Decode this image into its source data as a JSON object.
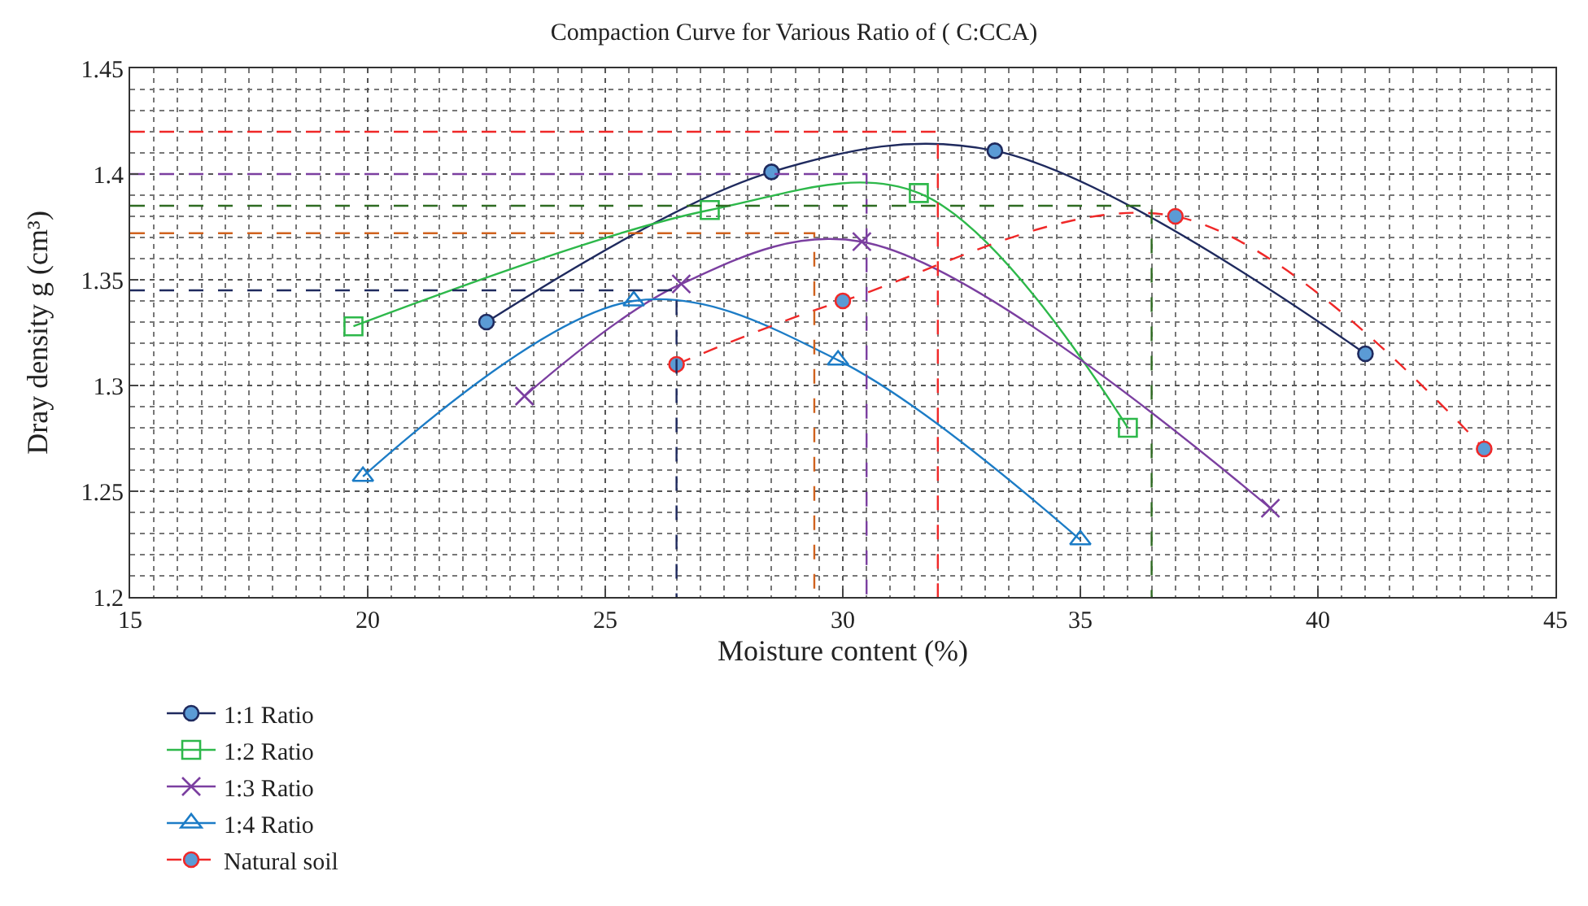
{
  "chart_data": {
    "type": "line",
    "title": "Compaction Curve for Various Ratio of ( C:CCA)",
    "xlabel": "Moisture content (%)",
    "ylabel": "Dray density g (cm³)",
    "xlim": [
      15,
      45
    ],
    "xticks": [
      15,
      20,
      25,
      30,
      35,
      40,
      45
    ],
    "ylim": [
      1.2,
      1.45
    ],
    "yticks": [
      1.2,
      1.25,
      1.3,
      1.35,
      1.4,
      1.45
    ],
    "grid": true,
    "legend": "bottom",
    "series": [
      {
        "name": "1:1 Ratio",
        "color": "#1f2a5e",
        "marker": "circle",
        "line_style": "solid",
        "x": [
          22.5,
          28.5,
          33.2,
          41
        ],
        "values": [
          1.33,
          1.401,
          1.411,
          1.315
        ]
      },
      {
        "name": "1:2 Ratio",
        "color": "#2db84a",
        "marker": "square",
        "line_style": "solid",
        "x": [
          19.7,
          27.2,
          31.6,
          36
        ],
        "values": [
          1.328,
          1.383,
          1.391,
          1.28
        ]
      },
      {
        "name": "1:3 Ratio",
        "color": "#7b3fa0",
        "marker": "cross",
        "line_style": "solid",
        "x": [
          23.3,
          26.6,
          30.4,
          39
        ],
        "values": [
          1.295,
          1.348,
          1.368,
          1.242
        ]
      },
      {
        "name": "1:4 Ratio",
        "color": "#1c7cc6",
        "marker": "triangle",
        "line_style": "solid",
        "x": [
          19.9,
          25.6,
          29.9,
          35
        ],
        "values": [
          1.257,
          1.34,
          1.312,
          1.227
        ]
      },
      {
        "name": "Natural soil",
        "color": "#f02828",
        "marker": "circle",
        "line_style": "dashed",
        "x": [
          26.5,
          30,
          37,
          43.5
        ],
        "values": [
          1.31,
          1.34,
          1.38,
          1.27
        ]
      },
      {
        "color": "#f02828",
        "marker": "none",
        "line_style": "dashed",
        "x": [
          15,
          32,
          32
        ],
        "values": [
          1.42,
          1.42,
          1.2
        ]
      },
      {
        "color": "#7b3fa0",
        "marker": "none",
        "line_style": "dashed",
        "x": [
          15,
          30.5,
          30.5
        ],
        "values": [
          1.4,
          1.4,
          1.2
        ]
      },
      {
        "color": "#2f6b22",
        "marker": "none",
        "line_style": "dashed",
        "x": [
          15,
          36.5,
          36.5
        ],
        "values": [
          1.385,
          1.385,
          1.2
        ]
      },
      {
        "color": "#d0621e",
        "marker": "none",
        "line_style": "dashed",
        "x": [
          15,
          29.4,
          29.4
        ],
        "values": [
          1.372,
          1.372,
          1.2
        ]
      },
      {
        "color": "#1f2a5e",
        "marker": "none",
        "line_style": "dashed",
        "x": [
          15,
          26.5,
          26.5
        ],
        "values": [
          1.345,
          1.345,
          1.2
        ]
      }
    ]
  }
}
